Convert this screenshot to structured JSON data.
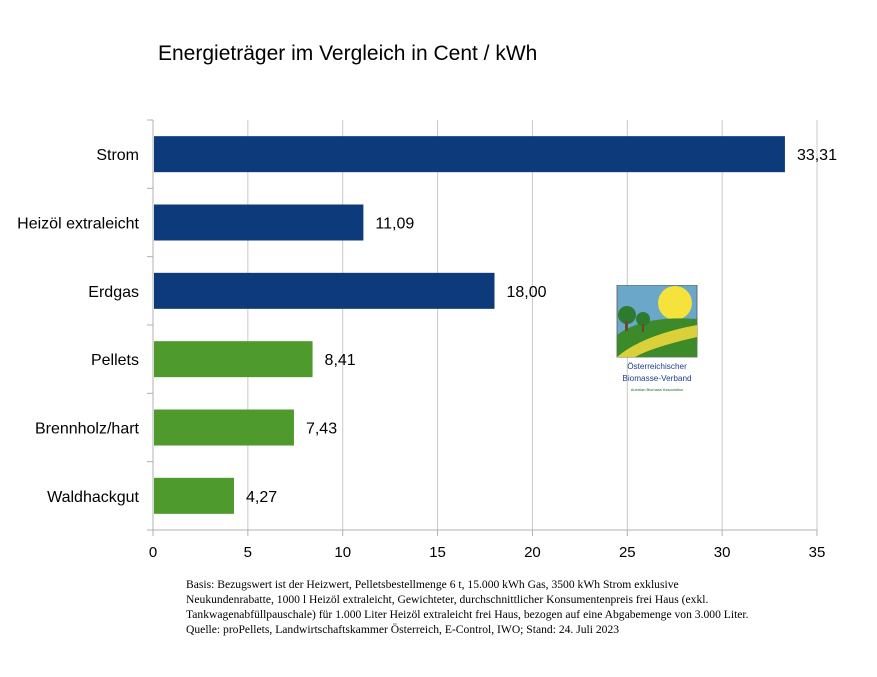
{
  "chart_data": {
    "type": "bar",
    "orientation": "horizontal",
    "title": "Energieträger im Vergleich in Cent / kWh",
    "categories": [
      "Strom",
      "Heizöl extraleicht",
      "Erdgas",
      "Pellets",
      "Brennholz/hart",
      "Waldhackgut"
    ],
    "values": [
      33.31,
      11.09,
      18.0,
      8.41,
      7.43,
      4.27
    ],
    "value_labels": [
      "33,31",
      "11,09",
      "18,00",
      "8,41",
      "7,43",
      "4,27"
    ],
    "bar_colors": [
      "#0d3a7a",
      "#0d3a7a",
      "#0d3a7a",
      "#4f9a2c",
      "#4f9a2c",
      "#4f9a2c"
    ],
    "xlim": [
      0,
      35
    ],
    "xticks": [
      0,
      5,
      10,
      15,
      20,
      25,
      30,
      35
    ],
    "xlabel": "",
    "ylabel": "",
    "grid": "vertical"
  },
  "logo": {
    "line1": "Österreichischer",
    "line2": "Biomasse-Verband",
    "line3": "Austrian Biomass Association"
  },
  "footnote": {
    "line1": "Basis: Bezugswert ist der Heizwert, Pelletsbestellmenge 6 t, 15.000 kWh Gas, 3500 kWh Strom exklusive",
    "line2": "Neukundenrabatte, 1000 l Heizöl extraleicht, Gewichteter, durchschnittlicher Konsumentenpreis frei Haus (exkl.",
    "line3": "Tankwagenabfüllpauschale) für 1.000 Liter Heizöl extraleicht frei Haus, bezogen auf eine Abgabemenge von 3.000 Liter.",
    "line4": "Quelle: proPellets, Landwirtschaftskammer Österreich, E-Control, IWO; Stand: 24. Juli 2023"
  }
}
